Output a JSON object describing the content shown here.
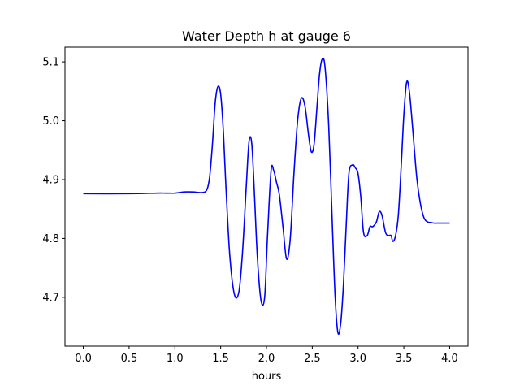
{
  "chart_data": {
    "type": "line",
    "title": "Water Depth h at gauge 6",
    "xlabel": "hours",
    "ylabel": "",
    "xlim": [
      -0.2,
      4.2
    ],
    "ylim": [
      4.617,
      5.125
    ],
    "x_ticks": [
      0.0,
      0.5,
      1.0,
      1.5,
      2.0,
      2.5,
      3.0,
      3.5,
      4.0
    ],
    "x_tick_labels": [
      "0.0",
      "0.5",
      "1.0",
      "1.5",
      "2.0",
      "2.5",
      "3.0",
      "3.5",
      "4.0"
    ],
    "y_ticks": [
      4.7,
      4.8,
      4.9,
      5.0,
      5.1
    ],
    "y_tick_labels": [
      "4.7",
      "4.8",
      "4.9",
      "5.0",
      "5.1"
    ],
    "grid": false,
    "series": [
      {
        "color": "#0000ff",
        "x": [
          0.0,
          0.5,
          0.8,
          0.9,
          1.0,
          1.1,
          1.2,
          1.3,
          1.35,
          1.38,
          1.41,
          1.44,
          1.47,
          1.5,
          1.53,
          1.56,
          1.6,
          1.65,
          1.7,
          1.74,
          1.78,
          1.81,
          1.84,
          1.87,
          1.9,
          1.94,
          1.98,
          2.01,
          2.05,
          2.08,
          2.11,
          2.14,
          2.18,
          2.22,
          2.26,
          2.3,
          2.34,
          2.38,
          2.42,
          2.46,
          2.49,
          2.52,
          2.55,
          2.58,
          2.61,
          2.64,
          2.68,
          2.72,
          2.75,
          2.78,
          2.81,
          2.84,
          2.87,
          2.9,
          2.94,
          2.97,
          3.0,
          3.03,
          3.06,
          3.1,
          3.13,
          3.16,
          3.2,
          3.23,
          3.26,
          3.3,
          3.33,
          3.36,
          3.38,
          3.41,
          3.44,
          3.47,
          3.5,
          3.53,
          3.56,
          3.6,
          3.64,
          3.68,
          3.72,
          3.76,
          3.8,
          3.83,
          3.86,
          3.9,
          3.93,
          3.96,
          4.0
        ],
        "y": [
          4.876,
          4.876,
          4.877,
          4.877,
          4.877,
          4.879,
          4.879,
          4.878,
          4.883,
          4.905,
          4.96,
          5.03,
          5.058,
          5.045,
          4.98,
          4.88,
          4.77,
          4.705,
          4.71,
          4.78,
          4.89,
          4.965,
          4.96,
          4.87,
          4.77,
          4.695,
          4.7,
          4.8,
          4.915,
          4.915,
          4.895,
          4.875,
          4.82,
          4.765,
          4.8,
          4.91,
          5.0,
          5.038,
          5.025,
          4.975,
          4.947,
          4.96,
          5.02,
          5.08,
          5.105,
          5.09,
          4.99,
          4.82,
          4.7,
          4.64,
          4.655,
          4.72,
          4.82,
          4.91,
          4.925,
          4.92,
          4.91,
          4.87,
          4.81,
          4.805,
          4.82,
          4.82,
          4.828,
          4.845,
          4.84,
          4.81,
          4.805,
          4.805,
          4.795,
          4.805,
          4.84,
          4.92,
          5.01,
          5.065,
          5.05,
          4.98,
          4.905,
          4.86,
          4.835,
          4.828,
          4.827,
          4.826,
          4.826,
          4.826,
          4.826,
          4.826,
          4.826
        ]
      }
    ]
  }
}
